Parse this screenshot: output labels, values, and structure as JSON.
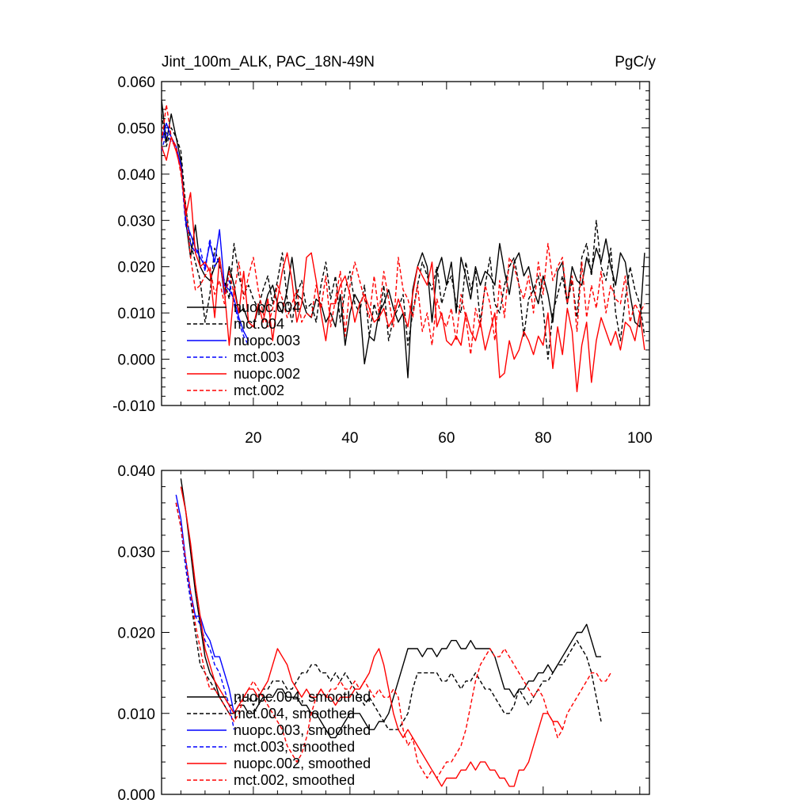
{
  "chart_data": [
    {
      "type": "line",
      "title": "Jint_100m_ALK, PAC_18N-49N",
      "units": "PgC/y",
      "xlabel": "",
      "ylabel": "",
      "xlim": [
        1,
        102
      ],
      "ylim": [
        -0.01,
        0.06
      ],
      "x_ticks": [
        20,
        40,
        60,
        80,
        100
      ],
      "y_ticks": [
        -0.01,
        0.0,
        0.01,
        0.02,
        0.03,
        0.04,
        0.05,
        0.06
      ],
      "y_tick_labels": [
        "-0.010",
        "0.000",
        "0.010",
        "0.020",
        "0.030",
        "0.040",
        "0.050",
        "0.060"
      ],
      "x_tick_labels": [
        "20",
        "40",
        "60",
        "80",
        "100"
      ],
      "legend_position": "lower-left",
      "series": [
        {
          "name": "nuopc.004",
          "color": "#000000",
          "dash": "solid",
          "x_start": 1,
          "values": [
            0.056,
            0.047,
            0.053,
            0.048,
            0.043,
            0.03,
            0.022,
            0.029,
            0.02,
            0.018,
            0.017,
            0.02,
            0.022,
            0.014,
            0.02,
            0.016,
            0.01,
            0.011,
            0.008,
            0.007,
            0.011,
            0.01,
            0.014,
            0.016,
            0.012,
            0.01,
            0.015,
            0.022,
            0.014,
            0.013,
            0.01,
            0.009,
            0.013,
            0.012,
            0.008,
            0.01,
            0.007,
            0.014,
            0.003,
            0.01,
            0.014,
            0.012,
            -0.001,
            0.005,
            0.004,
            0.01,
            0.012,
            0.015,
            0.011,
            0.008,
            0.01,
            -0.004,
            0.015,
            0.02,
            0.023,
            0.02,
            0.008,
            0.019,
            0.022,
            0.016,
            0.021,
            0.01,
            0.022,
            0.018,
            0.013,
            0.02,
            0.016,
            0.019,
            0.018,
            0.016,
            0.025,
            0.019,
            0.014,
            0.021,
            0.023,
            0.018,
            0.02,
            0.015,
            0.012,
            0.018,
            0.014,
            0.008,
            0.019,
            0.021,
            0.012,
            0.02,
            0.017,
            0.016,
            0.022,
            0.019,
            0.024,
            0.021,
            0.026,
            0.02,
            0.016,
            0.023,
            0.021,
            0.014,
            0.008,
            0.007,
            0.023
          ]
        },
        {
          "name": "mct.004",
          "color": "#000000",
          "dash": "dashed",
          "x_start": 1,
          "values": [
            0.053,
            0.046,
            0.05,
            0.048,
            0.045,
            0.033,
            0.025,
            0.021,
            0.017,
            0.008,
            0.014,
            0.024,
            0.02,
            0.017,
            0.013,
            0.025,
            0.018,
            0.014,
            0.016,
            0.013,
            0.011,
            0.015,
            0.018,
            0.012,
            0.017,
            0.023,
            0.013,
            0.008,
            0.014,
            0.017,
            0.011,
            0.012,
            0.008,
            0.016,
            0.021,
            0.013,
            0.018,
            0.008,
            0.015,
            0.019,
            0.012,
            0.01,
            0.016,
            0.005,
            0.012,
            0.008,
            0.016,
            0.004,
            0.009,
            0.011,
            0.014,
            0.003,
            0.01,
            0.016,
            0.021,
            0.018,
            0.015,
            0.02,
            0.012,
            0.016,
            0.018,
            0.012,
            0.01,
            0.021,
            0.015,
            0.019,
            0.008,
            0.016,
            0.022,
            0.012,
            0.01,
            0.016,
            0.02,
            0.022,
            0.016,
            0.005,
            0.013,
            0.015,
            0.018,
            0.011,
            0.0,
            0.01,
            0.014,
            0.018,
            0.012,
            0.017,
            0.009,
            0.022,
            0.025,
            0.018,
            0.03,
            0.02,
            0.017,
            0.024,
            0.01,
            0.004,
            0.013,
            0.02,
            0.015,
            0.012,
            0.005
          ]
        },
        {
          "name": "nuopc.003",
          "color": "#0000ff",
          "dash": "solid",
          "x_start": 1,
          "values": [
            0.047,
            0.051,
            0.048,
            0.046,
            0.042,
            0.03,
            0.027,
            0.024,
            0.022,
            0.02,
            0.025,
            0.021,
            0.028,
            0.016,
            0.015,
            0.013,
            0.009,
            0.006,
            0.004
          ]
        },
        {
          "name": "mct.003",
          "color": "#0000ff",
          "dash": "dashed",
          "x_start": 1,
          "values": [
            0.045,
            0.049,
            0.047,
            0.046,
            0.041,
            0.029,
            0.025,
            0.023,
            0.024,
            0.019,
            0.026,
            0.02,
            0.022,
            0.014,
            0.017,
            0.012,
            0.008,
            0.005,
            0.003
          ]
        },
        {
          "name": "nuopc.002",
          "color": "#ff0000",
          "dash": "solid",
          "x_start": 1,
          "values": [
            0.046,
            0.043,
            0.048,
            0.045,
            0.041,
            0.031,
            0.036,
            0.023,
            0.02,
            0.021,
            0.019,
            0.009,
            0.022,
            0.015,
            0.003,
            0.015,
            0.01,
            0.019,
            0.008,
            0.007,
            0.012,
            0.008,
            0.013,
            0.004,
            0.013,
            0.019,
            0.023,
            0.017,
            0.008,
            0.012,
            0.022,
            0.023,
            0.017,
            0.01,
            0.004,
            0.012,
            0.012,
            0.016,
            0.018,
            0.014,
            0.008,
            0.012,
            0.014,
            0.011,
            0.008,
            0.009,
            0.011,
            0.007,
            0.009,
            0.013,
            0.01,
            0.007,
            0.014,
            0.02,
            0.018,
            0.016,
            0.021,
            0.007,
            0.01,
            0.004,
            0.003,
            0.005,
            0.003,
            0.01,
            0.006,
            0.004,
            0.008,
            0.002,
            0.006,
            0.01,
            -0.004,
            -0.003,
            0.004,
            0.0,
            0.002,
            0.006,
            0.004,
            0.001,
            0.005,
            0.003,
            0.01,
            -0.002,
            0.007,
            0.001,
            0.011,
            0.006,
            -0.007,
            0.003,
            0.008,
            -0.005,
            0.004,
            0.009,
            0.006,
            0.003,
            0.006,
            0.002,
            0.008,
            0.007,
            0.004,
            0.01,
            0.002
          ]
        },
        {
          "name": "mct.002",
          "color": "#ff0000",
          "dash": "dashed",
          "x_start": 1,
          "values": [
            0.047,
            0.055,
            0.048,
            0.046,
            0.04,
            0.033,
            0.022,
            0.015,
            0.016,
            0.018,
            0.02,
            0.014,
            0.017,
            0.012,
            0.019,
            0.014,
            0.021,
            0.013,
            0.018,
            0.022,
            0.015,
            0.01,
            0.007,
            0.011,
            0.016,
            0.013,
            0.009,
            0.012,
            0.015,
            0.008,
            0.01,
            0.009,
            0.016,
            0.011,
            0.018,
            0.007,
            0.013,
            0.019,
            0.005,
            0.016,
            0.021,
            0.017,
            0.013,
            0.009,
            0.018,
            0.01,
            0.019,
            0.013,
            0.007,
            0.022,
            0.015,
            0.013,
            0.009,
            0.016,
            0.006,
            0.01,
            0.003,
            0.013,
            0.009,
            0.007,
            0.011,
            0.004,
            0.014,
            0.009,
            0.001,
            0.011,
            0.007,
            0.016,
            0.012,
            0.004,
            0.017,
            0.009,
            0.022,
            0.02,
            0.016,
            0.013,
            0.018,
            0.01,
            0.021,
            0.014,
            0.025,
            0.017,
            0.02,
            0.022,
            0.012,
            0.018,
            0.006,
            0.021,
            0.009,
            0.016,
            0.011,
            0.019,
            0.01,
            0.016,
            0.013,
            0.012,
            0.018,
            0.008,
            0.012,
            0.01,
            0.012
          ]
        }
      ],
      "legend": [
        "nuopc.004",
        "mct.004",
        "nuopc.003",
        "mct.003",
        "nuopc.002",
        "mct.002"
      ]
    },
    {
      "type": "line",
      "title": "",
      "xlabel": "",
      "ylabel": "",
      "xlim": [
        1,
        102
      ],
      "ylim": [
        0.0,
        0.04
      ],
      "x_ticks": [
        20,
        40,
        60,
        80,
        100
      ],
      "y_ticks": [
        0.0,
        0.01,
        0.02,
        0.03,
        0.04
      ],
      "y_tick_labels": [
        "0.000",
        "0.010",
        "0.020",
        "0.030",
        "0.040"
      ],
      "legend_position": "lower-left",
      "series": [
        {
          "name": "nuopc.004, smoothed",
          "color": "#000000",
          "dash": "solid",
          "x_start": 5,
          "values": [
            0.039,
            0.035,
            0.03,
            0.025,
            0.021,
            0.017,
            0.015,
            0.014,
            0.012,
            0.011,
            0.01,
            0.01,
            0.011,
            0.011,
            0.01,
            0.01,
            0.011,
            0.012,
            0.012,
            0.012,
            0.013,
            0.013,
            0.012,
            0.012,
            0.012,
            0.011,
            0.011,
            0.01,
            0.01,
            0.009,
            0.008,
            0.007,
            0.007,
            0.008,
            0.009,
            0.01,
            0.01,
            0.01,
            0.009,
            0.008,
            0.008,
            0.009,
            0.009,
            0.01,
            0.012,
            0.014,
            0.016,
            0.018,
            0.018,
            0.018,
            0.017,
            0.018,
            0.018,
            0.017,
            0.018,
            0.018,
            0.019,
            0.019,
            0.018,
            0.018,
            0.019,
            0.018,
            0.018,
            0.018,
            0.018,
            0.017,
            0.015,
            0.013,
            0.013,
            0.012,
            0.013,
            0.013,
            0.014,
            0.014,
            0.015,
            0.015,
            0.016,
            0.015,
            0.016,
            0.017,
            0.018,
            0.019,
            0.02,
            0.02,
            0.021,
            0.019,
            0.017,
            0.017
          ]
        },
        {
          "name": "mct.004, smoothed",
          "color": "#000000",
          "dash": "dashed",
          "x_start": 4,
          "values": [
            0.036,
            0.033,
            0.028,
            0.024,
            0.02,
            0.016,
            0.015,
            0.014,
            0.013,
            0.012,
            0.012,
            0.011,
            0.011,
            0.012,
            0.012,
            0.012,
            0.011,
            0.012,
            0.013,
            0.013,
            0.014,
            0.014,
            0.014,
            0.013,
            0.013,
            0.014,
            0.015,
            0.015,
            0.016,
            0.016,
            0.015,
            0.015,
            0.014,
            0.015,
            0.014,
            0.015,
            0.014,
            0.013,
            0.012,
            0.011,
            0.012,
            0.011,
            0.01,
            0.009,
            0.008,
            0.008,
            0.008,
            0.009,
            0.01,
            0.013,
            0.015,
            0.015,
            0.015,
            0.015,
            0.015,
            0.014,
            0.014,
            0.015,
            0.014,
            0.013,
            0.014,
            0.014,
            0.015,
            0.014,
            0.013,
            0.013,
            0.012,
            0.011,
            0.01,
            0.01,
            0.011,
            0.013,
            0.012,
            0.011,
            0.012,
            0.013,
            0.014,
            0.014,
            0.015,
            0.016,
            0.016,
            0.017,
            0.018,
            0.019,
            0.018,
            0.017,
            0.015,
            0.012,
            0.009
          ]
        },
        {
          "name": "nuopc.003, smoothed",
          "color": "#0000ff",
          "dash": "solid",
          "x_start": 4,
          "values": [
            0.037,
            0.034,
            0.029,
            0.025,
            0.022,
            0.022,
            0.02,
            0.019,
            0.017,
            0.017,
            0.015,
            0.013,
            0.01
          ]
        },
        {
          "name": "mct.003, smoothed",
          "color": "#0000ff",
          "dash": "dashed",
          "x_start": 4,
          "values": [
            0.036,
            0.033,
            0.028,
            0.024,
            0.022,
            0.021,
            0.019,
            0.018,
            0.016,
            0.015,
            0.013,
            0.011,
            0.008
          ]
        },
        {
          "name": "nuopc.002, smoothed",
          "color": "#ff0000",
          "dash": "solid",
          "x_start": 5,
          "values": [
            0.038,
            0.035,
            0.031,
            0.026,
            0.022,
            0.018,
            0.016,
            0.014,
            0.013,
            0.012,
            0.011,
            0.01,
            0.011,
            0.012,
            0.013,
            0.013,
            0.012,
            0.013,
            0.014,
            0.016,
            0.018,
            0.017,
            0.016,
            0.014,
            0.013,
            0.012,
            0.013,
            0.012,
            0.012,
            0.013,
            0.012,
            0.012,
            0.011,
            0.012,
            0.012,
            0.012,
            0.013,
            0.013,
            0.014,
            0.015,
            0.017,
            0.018,
            0.016,
            0.013,
            0.01,
            0.008,
            0.007,
            0.008,
            0.007,
            0.006,
            0.005,
            0.004,
            0.003,
            0.002,
            0.001,
            0.002,
            0.002,
            0.002,
            0.003,
            0.003,
            0.004,
            0.003,
            0.004,
            0.004,
            0.003,
            0.003,
            0.002,
            0.002,
            0.001,
            0.001,
            0.003,
            0.003,
            0.004,
            0.006,
            0.008,
            0.01,
            0.01,
            0.009,
            0.009,
            0.008
          ]
        },
        {
          "name": "mct.002, smoothed",
          "color": "#ff0000",
          "dash": "dashed",
          "x_start": 4,
          "values": [
            0.036,
            0.033,
            0.029,
            0.025,
            0.021,
            0.018,
            0.015,
            0.013,
            0.013,
            0.012,
            0.011,
            0.01,
            0.009,
            0.01,
            0.012,
            0.013,
            0.014,
            0.013,
            0.012,
            0.011,
            0.01,
            0.009,
            0.008,
            0.006,
            0.005,
            0.004,
            0.005,
            0.007,
            0.01,
            0.012,
            0.013,
            0.012,
            0.013,
            0.013,
            0.014,
            0.013,
            0.013,
            0.014,
            0.013,
            0.014,
            0.013,
            0.012,
            0.013,
            0.012,
            0.012,
            0.013,
            0.012,
            0.008,
            0.006,
            0.007,
            0.004,
            0.003,
            0.002,
            0.003,
            0.002,
            0.003,
            0.004,
            0.004,
            0.005,
            0.006,
            0.008,
            0.011,
            0.014,
            0.016,
            0.017,
            0.018,
            0.017,
            0.017,
            0.018,
            0.017,
            0.016,
            0.015,
            0.014,
            0.013,
            0.012,
            0.013,
            0.012,
            0.01,
            0.009,
            0.007,
            0.008,
            0.01,
            0.011,
            0.012,
            0.013,
            0.014,
            0.015,
            0.015,
            0.014,
            0.014,
            0.015
          ]
        }
      ],
      "legend": [
        "nuopc.004, smoothed",
        "mct.004, smoothed",
        "nuopc.003, smoothed",
        "mct.003, smoothed",
        "nuopc.002, smoothed",
        "mct.002, smoothed"
      ]
    }
  ]
}
